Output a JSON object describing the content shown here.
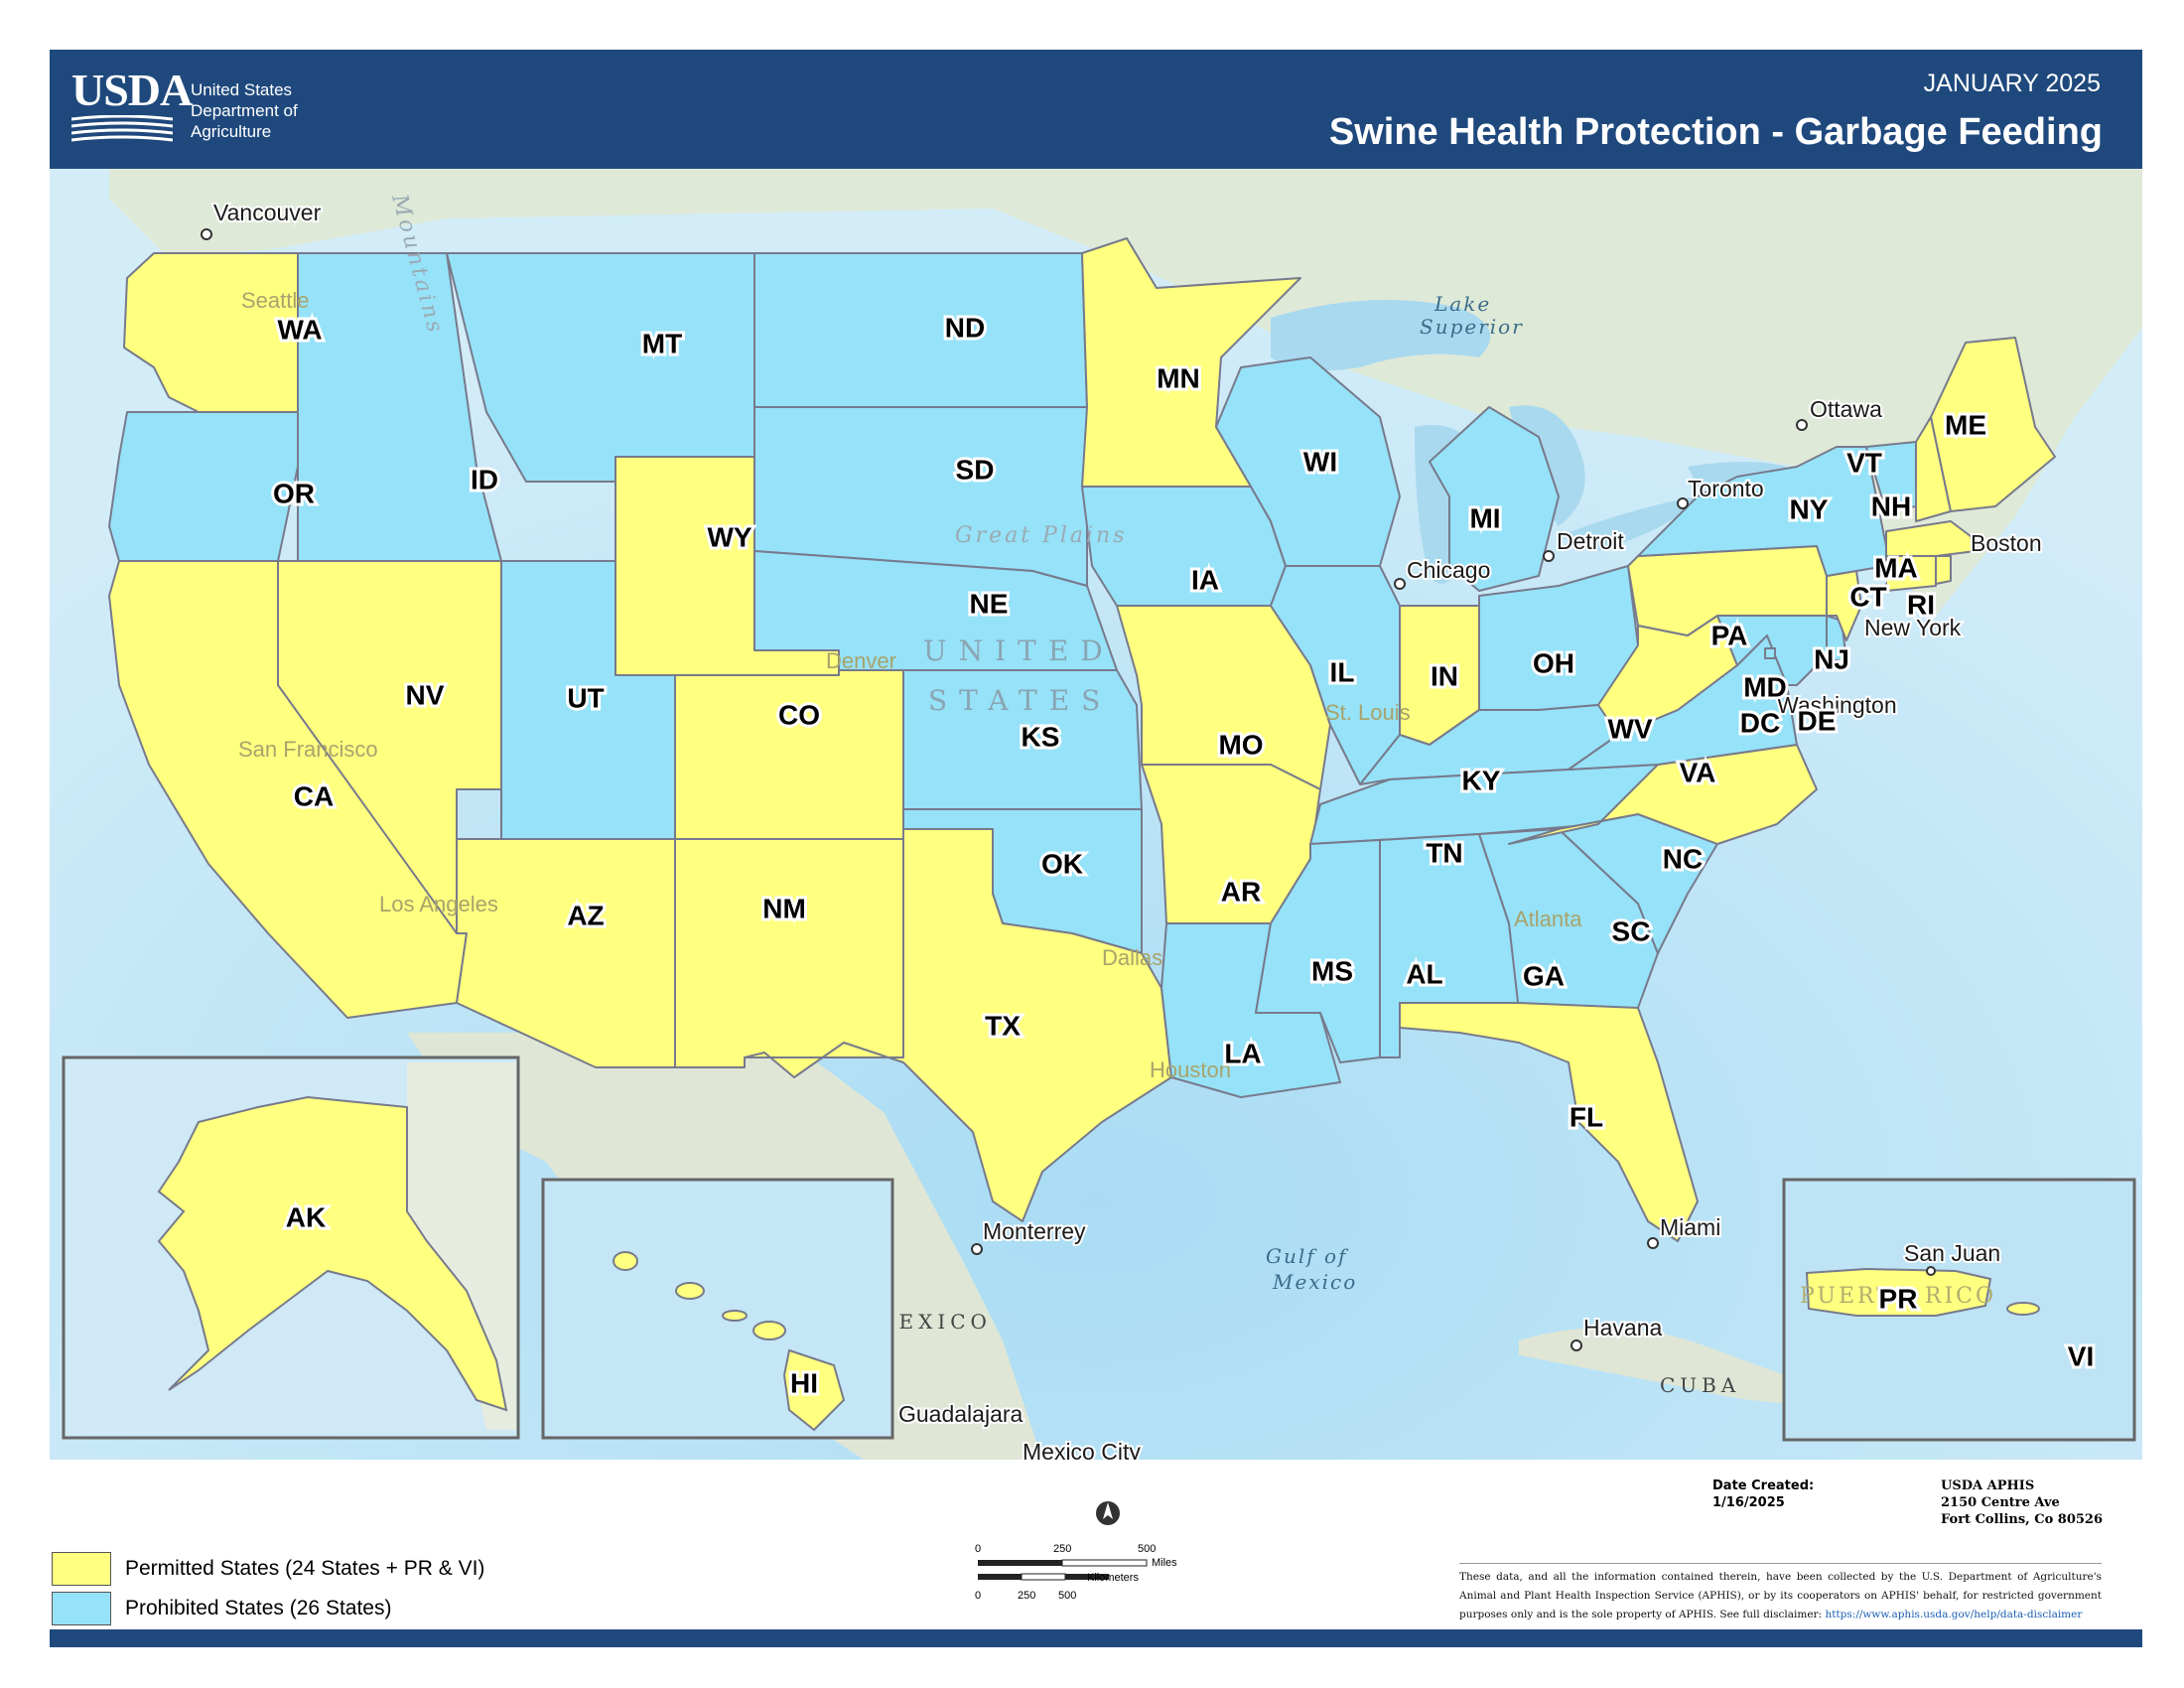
{
  "header": {
    "logo_text": "USDA",
    "department": [
      "United States",
      "Department of",
      "Agriculture"
    ],
    "date": "JANUARY 2025",
    "title": "Swine Health Protection - Garbage Feeding"
  },
  "colors": {
    "permitted": "#ffff80",
    "prohibited": "#96e2f8",
    "header": "#1f497d",
    "land": "#dfe9d7",
    "water": "#cfe9f6",
    "border": "#7a7a8a"
  },
  "states": {
    "WA": "WA",
    "OR": "OR",
    "CA": "CA",
    "NV": "NV",
    "ID": "ID",
    "MT": "MT",
    "WY": "WY",
    "UT": "UT",
    "AZ": "AZ",
    "CO": "CO",
    "NM": "NM",
    "ND": "ND",
    "SD": "SD",
    "NE": "NE",
    "KS": "KS",
    "OK": "OK",
    "TX": "TX",
    "MN": "MN",
    "IA": "IA",
    "MO": "MO",
    "AR": "AR",
    "LA": "LA",
    "WI": "WI",
    "IL": "IL",
    "MI": "MI",
    "IN": "IN",
    "OH": "OH",
    "KY": "KY",
    "TN": "TN",
    "MS": "MS",
    "AL": "AL",
    "GA": "GA",
    "FL": "FL",
    "SC": "SC",
    "NC": "NC",
    "VA": "VA",
    "WV": "WV",
    "PA": "PA",
    "NY": "NY",
    "VT": "VT",
    "NH": "NH",
    "ME": "ME",
    "MA": "MA",
    "RI": "RI",
    "CT": "CT",
    "NJ": "NJ",
    "DE": "DE",
    "MD": "MD",
    "DC": "DC",
    "AK": "AK",
    "HI": "HI",
    "PR": "PR",
    "VI": "VI"
  },
  "cities": {
    "vancouver": "Vancouver",
    "seattle": "Seattle",
    "ottawa": "Ottawa",
    "toronto": "Toronto",
    "boston": "Boston",
    "detroit": "Detroit",
    "chicago": "Chicago",
    "new_york": "New York",
    "washington": "Washington",
    "denver": "Denver",
    "san_francisco": "San Francisco",
    "st_louis": "St. Louis",
    "los_angeles": "Los Angeles",
    "atlanta": "Atlanta",
    "dallas": "Dallas",
    "houston": "Houston",
    "monterrey": "Monterrey",
    "miami": "Miami",
    "havana": "Havana",
    "guadalajara": "Guadalajara",
    "mexico_city": "Mexico City",
    "san_juan": "San Juan"
  },
  "geo_labels": {
    "lake_superior_1": "Lake",
    "lake_superior_2": "Superior",
    "great_plains": "Great Plains",
    "united": "UNITED",
    "states": "STATES",
    "gulf_1": "Gulf of",
    "gulf_2": "Mexico",
    "mexico": "MEXICO",
    "cuba": "CUBA",
    "mountains": "Mountains",
    "puerto_rico": "PUERTO RICO"
  },
  "legend": {
    "permitted": "Permitted States (24 States + PR & VI)",
    "prohibited": "Prohibited States (26 States)"
  },
  "scale": {
    "miles_ticks": [
      "0",
      "250",
      "500"
    ],
    "miles_unit": "Miles",
    "km_ticks": [
      "0",
      "250",
      "500"
    ],
    "km_unit": "Kilometers"
  },
  "date_created": {
    "label": "Date Created:",
    "value": "1/16/2025"
  },
  "address": [
    "USDA APHIS",
    "2150 Centre Ave",
    "Fort Collins, Co 80526"
  ],
  "disclaimer": {
    "text": "These data, and all the information contained therein, have been collected by the U.S. Department of Agriculture's Animal and Plant Health Inspection Service (APHIS), or by its cooperators on APHIS' behalf, for restricted government purposes only and is the sole property of APHIS. See full disclaimer:",
    "link": "https://www.aphis.usda.gov/help/data-disclaimer"
  }
}
